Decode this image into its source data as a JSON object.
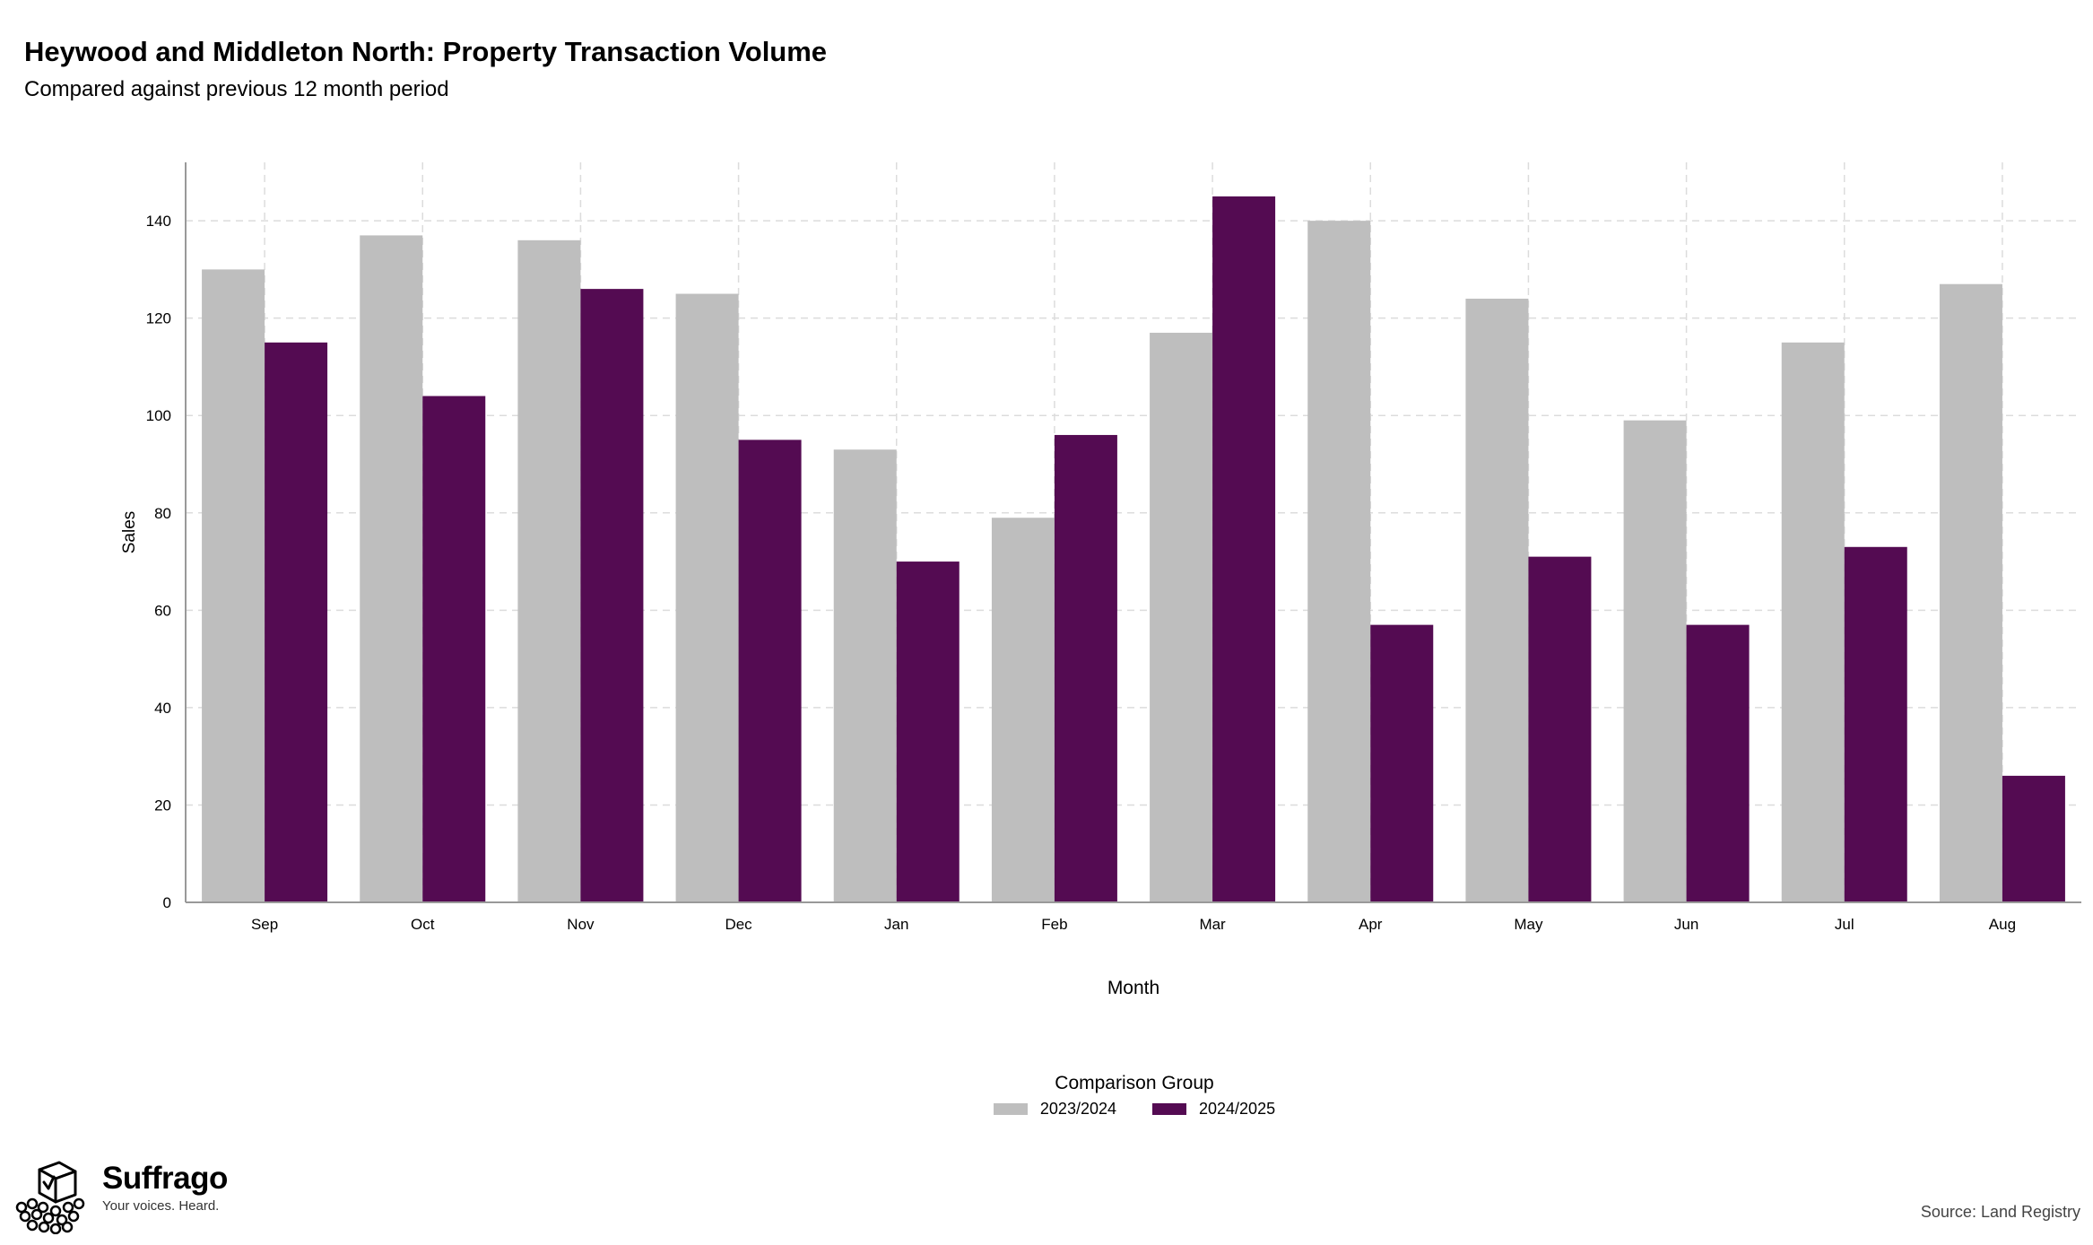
{
  "header": {
    "title": "Heywood and Middleton North: Property Transaction Volume",
    "subtitle": "Compared against previous 12 month period"
  },
  "chart_data": {
    "type": "bar",
    "title": "Heywood and Middleton North: Property Transaction Volume",
    "subtitle": "Compared against previous 12 month period",
    "xlabel": "Month",
    "ylabel": "Sales",
    "categories": [
      "Sep",
      "Oct",
      "Nov",
      "Dec",
      "Jan",
      "Feb",
      "Mar",
      "Apr",
      "May",
      "Jun",
      "Jul",
      "Aug"
    ],
    "series": [
      {
        "name": "2023/2024",
        "color": "#bebebe",
        "values": [
          130,
          137,
          136,
          125,
          93,
          79,
          117,
          140,
          124,
          99,
          115,
          127
        ]
      },
      {
        "name": "2024/2025",
        "color": "#540b52",
        "values": [
          115,
          104,
          126,
          95,
          70,
          96,
          145,
          57,
          71,
          57,
          73,
          26
        ]
      }
    ],
    "yticks": [
      0,
      20,
      40,
      60,
      80,
      100,
      120,
      140
    ],
    "ylim": [
      0,
      152
    ],
    "grid": true,
    "legend_title": "Comparison Group",
    "legend_position": "bottom"
  },
  "logo": {
    "name": "Suffrago",
    "tagline": "Your voices. Heard.",
    "icon": "ballot-box-icon"
  },
  "footer": {
    "source": "Source: Land Registry"
  }
}
